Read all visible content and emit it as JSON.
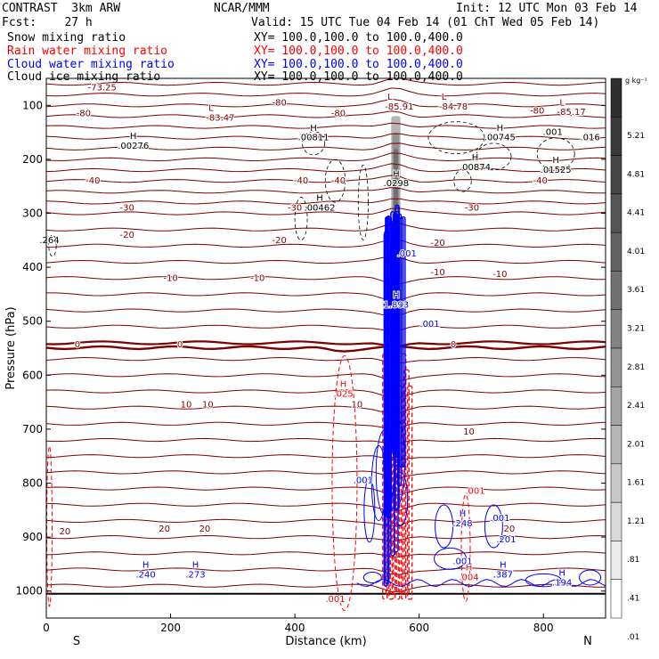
{
  "header": {
    "model": "CONTRAST  3km ARW",
    "institution": "NCAR/MMM",
    "init": "Init: 12 UTC Mon 03 Feb 14",
    "fcst": "Fcst:    27 h",
    "valid": "Valid: 15 UTC Tue 04 Feb 14 (01 ChT Wed 05 Feb 14)",
    "fields": [
      {
        "label": "Snow mixing ratio",
        "xy": "XY= 100.0,100.0 to 100.0,400.0",
        "color": "#000000"
      },
      {
        "label": "Rain water mixing ratio",
        "xy": "XY= 100.0,100.0 to 100.0,400.0",
        "color": "#ff0000"
      },
      {
        "label": "Cloud water mixing ratio",
        "xy": "XY= 100.0,100.0 to 100.0,400.0",
        "color": "#0000ff"
      },
      {
        "label": "Cloud ice mixing ratio",
        "xy": "XY= 100.0,100.0 to 100.0,400.0",
        "color": "#000000"
      }
    ]
  },
  "chart_data": {
    "type": "contour cross-section",
    "xlabel": "Distance (km)",
    "ylabel": "Pressure (hPa)",
    "xlim": [
      0,
      900
    ],
    "ylim": [
      1050,
      50
    ],
    "x_ticks": [
      0,
      200,
      400,
      600,
      800
    ],
    "y_ticks": [
      100,
      200,
      300,
      400,
      500,
      600,
      700,
      800,
      900,
      1000
    ],
    "x_end_labels": {
      "left": "S",
      "right": "N"
    },
    "colorbar": {
      "unit": "g kg⁻¹",
      "levels": [
        "5.21",
        "4.81",
        "4.41",
        "4.01",
        "3.61",
        "3.21",
        "2.81",
        "2.41",
        "2.01",
        "1.61",
        "1.21",
        ".81",
        ".41",
        ".01"
      ],
      "colors": [
        "#2e2e2e",
        "#3a3a3a",
        "#474747",
        "#555555",
        "#636363",
        "#727272",
        "#828282",
        "#939393",
        "#a4a4a4",
        "#b6b6b6",
        "#c8c8c8",
        "#dadada",
        "#ebebeb",
        "#ffffff"
      ]
    },
    "temperature_contours": {
      "color": "#800000",
      "labels": [
        {
          "text": "-73.25",
          "x": 90,
          "p": 72
        },
        {
          "text": "-80",
          "x": 60,
          "p": 120
        },
        {
          "text": "-80",
          "x": 375,
          "p": 100
        },
        {
          "text": "-80",
          "x": 470,
          "p": 120
        },
        {
          "text": "-80",
          "x": 790,
          "p": 115
        },
        {
          "text": "-40",
          "x": 75,
          "p": 245
        },
        {
          "text": "-40",
          "x": 410,
          "p": 245
        },
        {
          "text": "-40",
          "x": 470,
          "p": 245
        },
        {
          "text": "-40",
          "x": 795,
          "p": 245
        },
        {
          "text": "-30",
          "x": 130,
          "p": 295
        },
        {
          "text": "-30",
          "x": 400,
          "p": 295
        },
        {
          "text": "-30",
          "x": 685,
          "p": 295
        },
        {
          "text": "-20",
          "x": 130,
          "p": 345
        },
        {
          "text": "-20",
          "x": 375,
          "p": 355
        },
        {
          "text": "-20",
          "x": 630,
          "p": 360
        },
        {
          "text": "-10",
          "x": 200,
          "p": 425
        },
        {
          "text": "-10",
          "x": 340,
          "p": 425
        },
        {
          "text": "-10",
          "x": 630,
          "p": 415
        },
        {
          "text": "-10",
          "x": 730,
          "p": 418
        },
        {
          "text": "0",
          "x": 50,
          "p": 548
        },
        {
          "text": "0",
          "x": 215,
          "p": 548
        },
        {
          "text": "0",
          "x": 655,
          "p": 548
        },
        {
          "text": "10",
          "x": 225,
          "p": 660
        },
        {
          "text": "10",
          "x": 260,
          "p": 660
        },
        {
          "text": "10",
          "x": 500,
          "p": 660
        },
        {
          "text": "10",
          "x": 680,
          "p": 710
        },
        {
          "text": "20",
          "x": 30,
          "p": 895
        },
        {
          "text": "20",
          "x": 190,
          "p": 890
        },
        {
          "text": "20",
          "x": 255,
          "p": 890
        },
        {
          "text": "20",
          "x": 745,
          "p": 890
        }
      ],
      "extrema": [
        {
          "kind": "L",
          "value": "-83.47",
          "x": 265,
          "p": 110
        },
        {
          "kind": "L",
          "value": "-85.91",
          "x": 553,
          "p": 90
        },
        {
          "kind": "L",
          "value": "-84.78",
          "x": 640,
          "p": 90
        },
        {
          "kind": "L",
          "value": "-85.17",
          "x": 830,
          "p": 100
        }
      ]
    },
    "snow_extrema": [
      {
        "kind": "H",
        "value": ".00276",
        "x": 140,
        "p": 180
      },
      {
        "kind": "H",
        "value": ".00811",
        "x": 430,
        "p": 165
      },
      {
        "kind": "H",
        "value": ".00745",
        "x": 730,
        "p": 165
      },
      {
        "kind": "H",
        "value": ".00874",
        "x": 690,
        "p": 220
      },
      {
        "kind": "H",
        "value": ".01525",
        "x": 820,
        "p": 225
      },
      {
        "kind": "H",
        "value": ".00462",
        "x": 440,
        "p": 295
      },
      {
        "kind": "H",
        "value": ".0298",
        "x": 563,
        "p": 250
      }
    ],
    "snow_labels": [
      {
        "text": ".001",
        "x": 815,
        "p": 155
      },
      {
        "text": ".016",
        "x": 875,
        "p": 165
      },
      {
        "text": ".264",
        "x": 5,
        "p": 355
      }
    ],
    "rain_extrema": [
      {
        "kind": "H",
        "value": ".025",
        "x": 478,
        "p": 640
      },
      {
        "kind": "H",
        "value": ".004",
        "x": 680,
        "p": 980
      }
    ],
    "rain_labels": [
      {
        "text": ".001",
        "x": 465,
        "p": 1020
      },
      {
        "text": ".001",
        "x": 690,
        "p": 820
      }
    ],
    "cloud_extrema": [
      {
        "kind": "H",
        "value": "1.893",
        "x": 563,
        "p": 475
      },
      {
        "kind": "H",
        "value": ".240",
        "x": 160,
        "p": 975
      },
      {
        "kind": "H",
        "value": ".273",
        "x": 240,
        "p": 975
      },
      {
        "kind": "H",
        "value": ".248",
        "x": 670,
        "p": 880
      },
      {
        "kind": "H",
        "value": ".387",
        "x": 735,
        "p": 975
      },
      {
        "kind": "H",
        "value": ".194",
        "x": 830,
        "p": 990
      }
    ],
    "cloud_labels": [
      {
        "text": ".001",
        "x": 617,
        "p": 510
      },
      {
        "text": ".001",
        "x": 510,
        "p": 800
      },
      {
        "text": ".001",
        "x": 730,
        "p": 870
      },
      {
        "text": ".201",
        "x": 740,
        "p": 910
      },
      {
        "text": ".001",
        "x": 670,
        "p": 950
      },
      {
        "text": ".001",
        "x": 580,
        "p": 380
      }
    ]
  }
}
